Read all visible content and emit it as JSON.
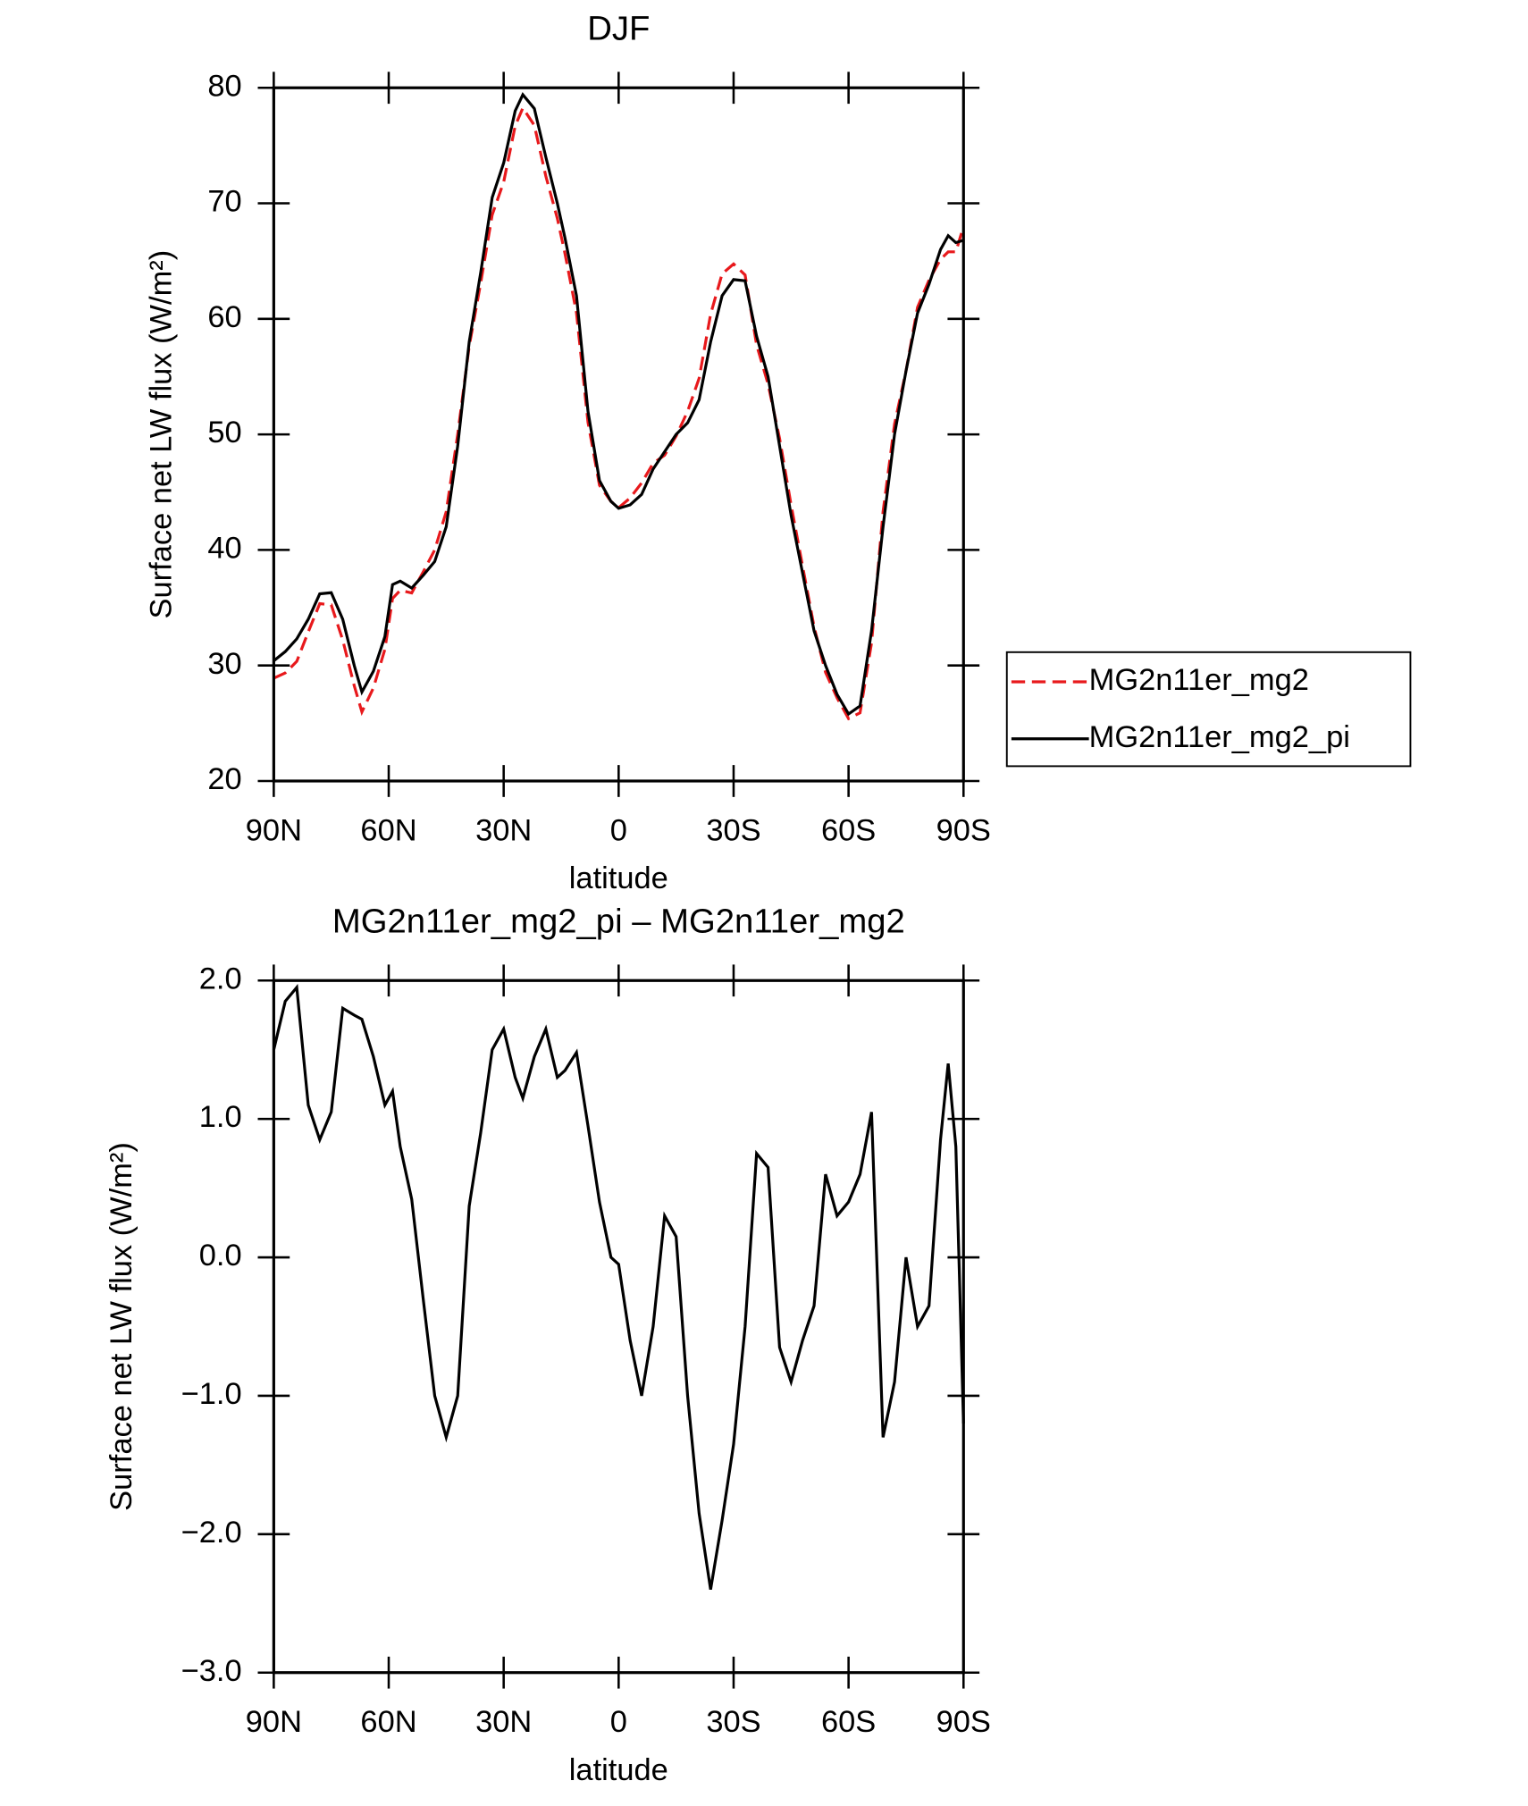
{
  "chart_data": [
    {
      "type": "line",
      "title": "DJF",
      "x_label": "latitude",
      "y_label": "Surface net LW flux (W/m²)",
      "x": [
        90,
        87,
        84,
        81,
        78,
        75,
        72,
        69,
        67,
        64,
        61,
        59,
        57,
        54,
        51,
        48,
        45,
        42,
        39,
        36,
        33,
        30,
        27,
        25,
        22,
        19,
        16,
        14,
        11,
        8,
        5,
        2,
        0,
        -3,
        -6,
        -9,
        -12,
        -15,
        -18,
        -21,
        -24,
        -27,
        -30,
        -33,
        -36,
        -39,
        -42,
        -45,
        -48,
        -51,
        -54,
        -57,
        -60,
        -63,
        -66,
        -69,
        -72,
        -75,
        -78,
        -81,
        -84,
        -86,
        -88,
        -90
      ],
      "series": [
        {
          "name": "MG2n11er_mg2",
          "color": "#e8191c",
          "dash": "dashed",
          "values": [
            28.9,
            29.35,
            30.35,
            32.9,
            35.35,
            35.25,
            32.2,
            28.25,
            25.98,
            28.05,
            31.4,
            35.8,
            36.5,
            36.28,
            38.1,
            40,
            43.3,
            50,
            57.63,
            63.1,
            69,
            71.85,
            76.7,
            78.25,
            76.75,
            72.35,
            68.7,
            65.65,
            60.52,
            51.05,
            45.6,
            44.2,
            43.65,
            44.5,
            45.8,
            47.5,
            48.2,
            49.85,
            52,
            54.85,
            60.4,
            63.9,
            64.75,
            63.8,
            57.75,
            54.35,
            49.65,
            43.9,
            38.6,
            33.35,
            29.4,
            27.2,
            25.4,
            25.9,
            31.95,
            43.3,
            50.9,
            55.5,
            61,
            63.35,
            65.15,
            65.8,
            65.8,
            68
          ]
        },
        {
          "name": "MG2n11er_mg2_pi",
          "color": "#000000",
          "dash": "solid",
          "values": [
            30.4,
            31.2,
            32.3,
            34,
            36.2,
            36.3,
            34,
            30,
            27.7,
            29.5,
            32.5,
            37,
            37.3,
            36.7,
            37.8,
            39,
            42,
            49,
            58,
            64,
            70.5,
            73.5,
            78,
            79.4,
            78.2,
            74,
            70,
            67,
            62,
            52,
            46,
            44.2,
            43.6,
            43.9,
            44.8,
            47,
            48.5,
            50,
            51,
            53,
            58,
            62,
            63.4,
            63.3,
            58.5,
            55,
            49,
            43,
            38,
            33,
            30,
            27.5,
            25.8,
            26.5,
            33,
            42,
            50,
            55.5,
            60.5,
            63,
            66,
            67.2,
            66.6,
            66.8
          ]
        }
      ],
      "xlim": [
        90,
        -90
      ],
      "xticks": [
        {
          "value": 90,
          "label": "90N"
        },
        {
          "value": 60,
          "label": "60N"
        },
        {
          "value": 30,
          "label": "30N"
        },
        0,
        {
          "value": -30,
          "label": "30S"
        },
        {
          "value": -60,
          "label": "60S"
        },
        {
          "value": -90,
          "label": "90S"
        }
      ],
      "ylim": [
        20,
        80
      ],
      "yticks": [
        20,
        30,
        40,
        50,
        60,
        70,
        80
      ],
      "legend": "right"
    },
    {
      "type": "line",
      "title": "MG2n11er_mg2_pi – MG2n11er_mg2",
      "x_label": "latitude",
      "y_label": "Surface net LW flux (W/m²)",
      "x": [
        90,
        87,
        84,
        81,
        78,
        75,
        72,
        69,
        67,
        64,
        61,
        59,
        57,
        54,
        51,
        48,
        45,
        42,
        39,
        36,
        33,
        30,
        27,
        25,
        22,
        19,
        16,
        14,
        11,
        8,
        5,
        2,
        0,
        -3,
        -6,
        -9,
        -12,
        -15,
        -18,
        -21,
        -24,
        -27,
        -30,
        -33,
        -36,
        -39,
        -42,
        -45,
        -48,
        -51,
        -54,
        -57,
        -60,
        -63,
        -66,
        -69,
        -72,
        -75,
        -78,
        -81,
        -84,
        -86,
        -88,
        -90
      ],
      "series": [
        {
          "color": "#000000",
          "dash": "solid",
          "values": [
            1.5,
            1.85,
            1.95,
            1.1,
            0.85,
            1.05,
            1.8,
            1.75,
            1.72,
            1.45,
            1.1,
            1.2,
            0.8,
            0.42,
            -0.3,
            -1.0,
            -1.3,
            -1.0,
            0.37,
            0.9,
            1.5,
            1.65,
            1.3,
            1.15,
            1.45,
            1.65,
            1.3,
            1.35,
            1.48,
            0.95,
            0.4,
            0.0,
            -0.05,
            -0.6,
            -1.0,
            -0.5,
            0.3,
            0.15,
            -1.0,
            -1.85,
            -2.4,
            -1.9,
            -1.35,
            -0.5,
            0.75,
            0.65,
            -0.65,
            -0.9,
            -0.6,
            -0.35,
            0.6,
            0.3,
            0.4,
            0.6,
            1.05,
            -1.3,
            -0.9,
            0.0,
            -0.5,
            -0.35,
            0.85,
            1.4,
            0.8,
            -1.2
          ]
        }
      ],
      "xlim": [
        90,
        -90
      ],
      "xticks": [
        {
          "value": 90,
          "label": "90N"
        },
        {
          "value": 60,
          "label": "60N"
        },
        {
          "value": 30,
          "label": "30N"
        },
        0,
        {
          "value": -30,
          "label": "30S"
        },
        {
          "value": -60,
          "label": "60S"
        },
        {
          "value": -90,
          "label": "90S"
        }
      ],
      "ylim": [
        -3,
        2
      ],
      "yticks": [
        {
          "value": -3,
          "label": "−3.0"
        },
        {
          "value": -2,
          "label": "−2.0"
        },
        {
          "value": -1,
          "label": "−1.0"
        },
        {
          "value": 0,
          "label": "0.0"
        },
        {
          "value": 1,
          "label": "1.0"
        },
        {
          "value": 2,
          "label": "2.0"
        }
      ]
    }
  ]
}
